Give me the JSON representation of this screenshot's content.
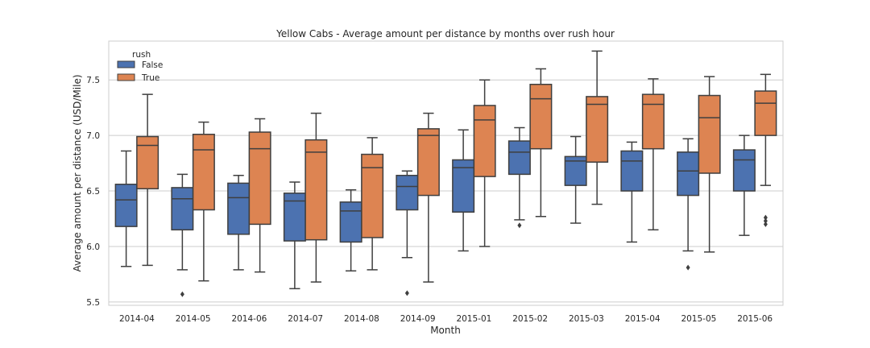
{
  "chart_data": {
    "type": "box",
    "title": "Yellow Cabs - Average amount per distance by months over rush hour",
    "xlabel": "Month",
    "ylabel": "Average amount per distance (USD/Mile)",
    "ylim": [
      5.47,
      7.85
    ],
    "yticks": [
      5.5,
      6.0,
      6.5,
      7.0,
      7.5
    ],
    "ytick_labels": [
      "5.5",
      "6.0",
      "6.5",
      "7.0",
      "7.5"
    ],
    "grid": "horizontal",
    "categories": [
      "2014-04",
      "2014-05",
      "2014-06",
      "2014-07",
      "2014-08",
      "2014-09",
      "2015-01",
      "2015-02",
      "2015-03",
      "2015-04",
      "2015-05",
      "2015-06"
    ],
    "legend": {
      "title": "rush",
      "position": "top-left"
    },
    "series": [
      {
        "name": "False",
        "color": "#4c72b0",
        "boxes": [
          {
            "whislo": 5.82,
            "q1": 6.18,
            "med": 6.42,
            "q3": 6.56,
            "whishi": 6.86,
            "fliers": []
          },
          {
            "whislo": 5.79,
            "q1": 6.15,
            "med": 6.43,
            "q3": 6.53,
            "whishi": 6.65,
            "fliers": [
              5.57
            ]
          },
          {
            "whislo": 5.79,
            "q1": 6.11,
            "med": 6.44,
            "q3": 6.57,
            "whishi": 6.64,
            "fliers": []
          },
          {
            "whislo": 5.62,
            "q1": 6.05,
            "med": 6.41,
            "q3": 6.48,
            "whishi": 6.58,
            "fliers": []
          },
          {
            "whislo": 5.78,
            "q1": 6.04,
            "med": 6.32,
            "q3": 6.4,
            "whishi": 6.51,
            "fliers": []
          },
          {
            "whislo": 5.9,
            "q1": 6.33,
            "med": 6.54,
            "q3": 6.64,
            "whishi": 6.68,
            "fliers": [
              5.58
            ]
          },
          {
            "whislo": 5.96,
            "q1": 6.31,
            "med": 6.71,
            "q3": 6.78,
            "whishi": 7.05,
            "fliers": []
          },
          {
            "whislo": 6.24,
            "q1": 6.65,
            "med": 6.85,
            "q3": 6.95,
            "whishi": 7.07,
            "fliers": [
              6.19
            ]
          },
          {
            "whislo": 6.21,
            "q1": 6.55,
            "med": 6.77,
            "q3": 6.81,
            "whishi": 6.99,
            "fliers": []
          },
          {
            "whislo": 6.04,
            "q1": 6.5,
            "med": 6.77,
            "q3": 6.86,
            "whishi": 6.94,
            "fliers": []
          },
          {
            "whislo": 5.96,
            "q1": 6.46,
            "med": 6.68,
            "q3": 6.85,
            "whishi": 6.97,
            "fliers": [
              5.81
            ]
          },
          {
            "whislo": 6.1,
            "q1": 6.5,
            "med": 6.78,
            "q3": 6.87,
            "whishi": 7.0,
            "fliers": []
          }
        ]
      },
      {
        "name": "True",
        "color": "#dd8452",
        "boxes": [
          {
            "whislo": 5.83,
            "q1": 6.52,
            "med": 6.91,
            "q3": 6.99,
            "whishi": 7.37,
            "fliers": []
          },
          {
            "whislo": 5.69,
            "q1": 6.33,
            "med": 6.87,
            "q3": 7.01,
            "whishi": 7.12,
            "fliers": []
          },
          {
            "whislo": 5.77,
            "q1": 6.2,
            "med": 6.88,
            "q3": 7.03,
            "whishi": 7.15,
            "fliers": []
          },
          {
            "whislo": 5.68,
            "q1": 6.06,
            "med": 6.85,
            "q3": 6.96,
            "whishi": 7.2,
            "fliers": []
          },
          {
            "whislo": 5.79,
            "q1": 6.08,
            "med": 6.71,
            "q3": 6.83,
            "whishi": 6.98,
            "fliers": []
          },
          {
            "whislo": 5.68,
            "q1": 6.46,
            "med": 7.0,
            "q3": 7.06,
            "whishi": 7.2,
            "fliers": []
          },
          {
            "whislo": 6.0,
            "q1": 6.63,
            "med": 7.14,
            "q3": 7.27,
            "whishi": 7.5,
            "fliers": []
          },
          {
            "whislo": 6.27,
            "q1": 6.88,
            "med": 7.33,
            "q3": 7.46,
            "whishi": 7.6,
            "fliers": []
          },
          {
            "whislo": 6.38,
            "q1": 6.76,
            "med": 7.28,
            "q3": 7.35,
            "whishi": 7.76,
            "fliers": []
          },
          {
            "whislo": 6.15,
            "q1": 6.88,
            "med": 7.28,
            "q3": 7.37,
            "whishi": 7.51,
            "fliers": []
          },
          {
            "whislo": 5.95,
            "q1": 6.66,
            "med": 7.16,
            "q3": 7.36,
            "whishi": 7.53,
            "fliers": []
          },
          {
            "whislo": 6.55,
            "q1": 7.0,
            "med": 7.29,
            "q3": 7.4,
            "whishi": 7.55,
            "fliers": [
              6.2,
              6.23,
              6.26
            ]
          }
        ]
      }
    ]
  }
}
